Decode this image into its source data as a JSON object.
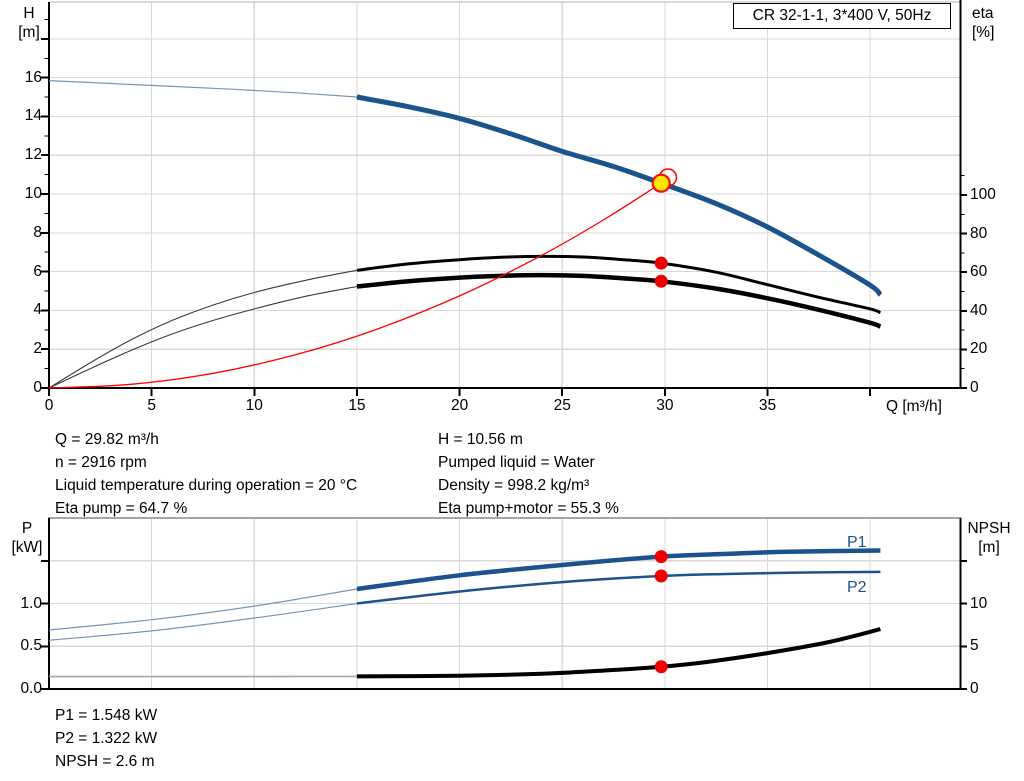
{
  "header": {
    "title": "CR 32-1-1, 3*400 V, 50Hz"
  },
  "axes_labels": {
    "h": "H",
    "h_unit": "[m]",
    "eta": "eta",
    "eta_unit": "[%]",
    "q": "Q [m³/h]",
    "p": "P",
    "p_unit": "[kW]",
    "npsh": "NPSH",
    "npsh_unit": "[m]"
  },
  "curve_labels": {
    "p1": "P1",
    "p2": "P2"
  },
  "info_top": {
    "left": [
      "Q = 29.82 m³/h",
      "n = 2916 rpm",
      "Liquid temperature during operation = 20 °C",
      "Eta pump = 64.7 %"
    ],
    "right": [
      "H = 10.56 m",
      "Pumped liquid = Water",
      "Density = 998.2 kg/m³",
      "Eta pump+motor = 55.3 %"
    ]
  },
  "info_bottom": [
    "P1 = 1.548 kW",
    "P2 = 1.322 kW",
    "NPSH = 2.6 m"
  ],
  "colors": {
    "blue": "#1b538c",
    "blue_thin": "#7a94b5",
    "black": "#000000",
    "black_thin": "#3a3a3a",
    "red": "#ff0000",
    "yellow": "#ffe600",
    "gray_thin": "#a6a6a6",
    "grid": "#d9d9d9",
    "border": "#b5b5b5",
    "axis": "#000000",
    "label_blue": "#1b538c"
  },
  "chart_data": [
    {
      "type": "line",
      "title": "CR 32-1-1, 3*400 V, 50Hz",
      "x": {
        "label": "Q [m³/h]",
        "min": 0,
        "max": 44.4,
        "ticks": [
          {
            "v": 0,
            "label": "0"
          },
          {
            "v": 5,
            "label": "5"
          },
          {
            "v": 10,
            "label": "10"
          },
          {
            "v": 15,
            "label": "15"
          },
          {
            "v": 20,
            "label": "20"
          },
          {
            "v": 25,
            "label": "25"
          },
          {
            "v": 30,
            "label": "30"
          },
          {
            "v": 35,
            "label": "35"
          },
          {
            "v": 40,
            "label": ""
          }
        ],
        "grid_ticks": [
          5,
          10,
          15,
          20,
          25,
          30,
          35,
          40
        ]
      },
      "y_left": {
        "label": "H [m]",
        "min": 0,
        "max": 19.9,
        "ticks": [
          {
            "v": 0,
            "label": "0"
          },
          {
            "v": 2,
            "label": "2"
          },
          {
            "v": 4,
            "label": "4"
          },
          {
            "v": 6,
            "label": "6"
          },
          {
            "v": 8,
            "label": "8"
          },
          {
            "v": 10,
            "label": "10"
          },
          {
            "v": 12,
            "label": "12"
          },
          {
            "v": 14,
            "label": "14"
          },
          {
            "v": 16,
            "label": "16"
          },
          {
            "v": 18,
            "label": ""
          }
        ],
        "minor_ticks": [
          1,
          3,
          5,
          7,
          9,
          11,
          13,
          15,
          17,
          19
        ],
        "grid_ticks": [
          2,
          4,
          6,
          8,
          10,
          12,
          14,
          16,
          18
        ]
      },
      "y_right": {
        "label": "eta [%]",
        "min": 0,
        "max": 200,
        "ticks": [
          {
            "v": 0,
            "label": "0"
          },
          {
            "v": 20,
            "label": "20"
          },
          {
            "v": 40,
            "label": "40"
          },
          {
            "v": 60,
            "label": "60"
          },
          {
            "v": 80,
            "label": "80"
          },
          {
            "v": 100,
            "label": "100"
          }
        ],
        "minor_ticks": [
          10,
          30,
          50,
          70,
          90,
          110
        ]
      },
      "series": [
        {
          "name": "h-curve-thin",
          "axis": "h",
          "color": "blue_thin",
          "w": 1.2,
          "points": [
            [
              0,
              15.85
            ],
            [
              3,
              15.7
            ],
            [
              6,
              15.55
            ],
            [
              9,
              15.4
            ],
            [
              12,
              15.22
            ],
            [
              15,
              15.0
            ]
          ]
        },
        {
          "name": "h-curve",
          "axis": "h",
          "color": "blue",
          "w": 5,
          "points": [
            [
              15,
              15.0
            ],
            [
              17.5,
              14.5
            ],
            [
              20,
              13.9
            ],
            [
              22.5,
              13.1
            ],
            [
              25,
              12.2
            ],
            [
              27.5,
              11.42
            ],
            [
              29.82,
              10.56
            ],
            [
              32.5,
              9.5
            ],
            [
              35,
              8.3
            ],
            [
              37.5,
              6.85
            ],
            [
              40,
              5.3
            ],
            [
              40.5,
              4.8
            ]
          ]
        },
        {
          "name": "eta-pump-curve-thin",
          "axis": "eta",
          "color": "black_thin",
          "w": 1.1,
          "points": [
            [
              0,
              0
            ],
            [
              2,
              13
            ],
            [
              4,
              25
            ],
            [
              6,
              35
            ],
            [
              8,
              43
            ],
            [
              10,
              49.5
            ],
            [
              12.5,
              55.8
            ],
            [
              15,
              61
            ]
          ]
        },
        {
          "name": "eta-pump-curve",
          "axis": "eta",
          "color": "black",
          "w": 3,
          "points": [
            [
              15,
              61
            ],
            [
              17.5,
              64.3
            ],
            [
              20,
              66.5
            ],
            [
              22,
              67.7
            ],
            [
              24,
              68.2
            ],
            [
              26,
              67.9
            ],
            [
              28,
              66.5
            ],
            [
              29.82,
              64.7
            ],
            [
              32.5,
              60
            ],
            [
              35,
              53.5
            ],
            [
              37.5,
              47
            ],
            [
              40,
              41
            ],
            [
              40.5,
              39
            ]
          ]
        },
        {
          "name": "eta-pump-motor-curve-thin",
          "axis": "eta",
          "color": "black_thin",
          "w": 1.1,
          "points": [
            [
              0,
              0
            ],
            [
              2,
              10
            ],
            [
              4,
              19.5
            ],
            [
              6,
              28
            ],
            [
              8,
              35
            ],
            [
              10,
              41
            ],
            [
              12.5,
              47.5
            ],
            [
              15,
              52.6
            ]
          ]
        },
        {
          "name": "eta-pump-motor-curve",
          "axis": "eta",
          "color": "black",
          "w": 4.5,
          "points": [
            [
              15,
              52.6
            ],
            [
              17.5,
              55.3
            ],
            [
              20,
              57.2
            ],
            [
              22,
              58.1
            ],
            [
              24,
              58.5
            ],
            [
              26,
              58.1
            ],
            [
              28,
              56.8
            ],
            [
              29.82,
              55.3
            ],
            [
              32.5,
              51.5
            ],
            [
              35,
              46.5
            ],
            [
              37.5,
              40.5
            ],
            [
              40,
              33.8
            ],
            [
              40.5,
              31.8
            ]
          ]
        },
        {
          "name": "system-curve",
          "axis": "h",
          "color": "red",
          "w": 1.3,
          "points": [
            [
              0,
              0
            ],
            [
              4,
              0.19
            ],
            [
              8,
              0.76
            ],
            [
              12,
              1.71
            ],
            [
              16,
              3.04
            ],
            [
              20,
              4.75
            ],
            [
              24,
              6.84
            ],
            [
              27,
              8.66
            ],
            [
              29.82,
              10.56
            ]
          ]
        }
      ],
      "markers": [
        {
          "type": "ring",
          "axis": "h",
          "x": 30.15,
          "y": 10.85
        },
        {
          "type": "duty",
          "axis": "h",
          "x": 29.82,
          "y": 10.56
        },
        {
          "type": "dot",
          "axis": "eta",
          "x": 29.82,
          "y": 64.7
        },
        {
          "type": "dot",
          "axis": "eta",
          "x": 29.82,
          "y": 55.3
        }
      ],
      "duty_point": {
        "q_m3h": 29.82,
        "h_m": 10.56,
        "eta_pump_pct": 64.7,
        "eta_pump_motor_pct": 55.3
      }
    },
    {
      "type": "line",
      "title": "Power and NPSH curves",
      "x": {
        "label": "",
        "min": 0,
        "max": 44.4,
        "grid_ticks": [
          5,
          10,
          15,
          20,
          25,
          30,
          35,
          40
        ]
      },
      "y_left": {
        "label": "P [kW]",
        "min": 0,
        "max": 2.0,
        "ticks": [
          {
            "v": 0,
            "label": "0.0"
          },
          {
            "v": 0.5,
            "label": "0.5"
          },
          {
            "v": 1,
            "label": "1.0"
          },
          {
            "v": 1.5,
            "label": ""
          }
        ],
        "grid_ticks": [
          0.5,
          1,
          1.5
        ]
      },
      "y_right": {
        "label": "NPSH [m]",
        "min": 0,
        "max": 20,
        "ticks": [
          {
            "v": 0,
            "label": "0"
          },
          {
            "v": 5,
            "label": "5"
          },
          {
            "v": 10,
            "label": "10"
          },
          {
            "v": 15,
            "label": ""
          }
        ]
      },
      "series": [
        {
          "name": "npsh-curve-thin",
          "axis": "npsh",
          "color": "gray_thin",
          "w": 1.6,
          "points": [
            [
              0,
              1.45
            ],
            [
              8,
              1.45
            ],
            [
              15,
              1.47
            ]
          ]
        },
        {
          "name": "npsh-curve",
          "axis": "npsh",
          "color": "black",
          "w": 4,
          "points": [
            [
              15,
              1.47
            ],
            [
              20,
              1.55
            ],
            [
              24,
              1.78
            ],
            [
              27,
              2.15
            ],
            [
              29.82,
              2.6
            ],
            [
              32,
              3.15
            ],
            [
              35,
              4.2
            ],
            [
              38,
              5.5
            ],
            [
              40.5,
              7.0
            ]
          ]
        },
        {
          "name": "p2-curve-thin",
          "axis": "p",
          "color": "blue_thin",
          "w": 1.2,
          "points": [
            [
              0,
              0.57
            ],
            [
              5,
              0.68
            ],
            [
              10,
              0.83
            ],
            [
              15,
              1.0
            ]
          ]
        },
        {
          "name": "p2-curve",
          "axis": "p",
          "color": "blue",
          "w": 2.5,
          "points": [
            [
              15,
              1.0
            ],
            [
              20,
              1.14
            ],
            [
              25,
              1.25
            ],
            [
              29.82,
              1.322
            ],
            [
              33,
              1.345
            ],
            [
              36,
              1.36
            ],
            [
              40.5,
              1.37
            ]
          ]
        },
        {
          "name": "p1-curve-thin",
          "axis": "p",
          "color": "blue_thin",
          "w": 1.2,
          "points": [
            [
              0,
              0.69
            ],
            [
              5,
              0.81
            ],
            [
              10,
              0.97
            ],
            [
              15,
              1.17
            ]
          ]
        },
        {
          "name": "p1-curve",
          "axis": "p",
          "color": "blue",
          "w": 4.5,
          "points": [
            [
              15,
              1.17
            ],
            [
              20,
              1.33
            ],
            [
              25,
              1.45
            ],
            [
              29.82,
              1.548
            ],
            [
              33,
              1.58
            ],
            [
              36,
              1.605
            ],
            [
              40.5,
              1.62
            ]
          ]
        }
      ],
      "markers": [
        {
          "type": "dot",
          "axis": "p",
          "x": 29.82,
          "y": 1.548
        },
        {
          "type": "dot",
          "axis": "p",
          "x": 29.82,
          "y": 1.322
        },
        {
          "type": "dot",
          "axis": "npsh",
          "x": 29.82,
          "y": 2.6
        }
      ],
      "duty_point": {
        "p1_kw": 1.548,
        "p2_kw": 1.322,
        "npsh_m": 2.6
      }
    }
  ]
}
